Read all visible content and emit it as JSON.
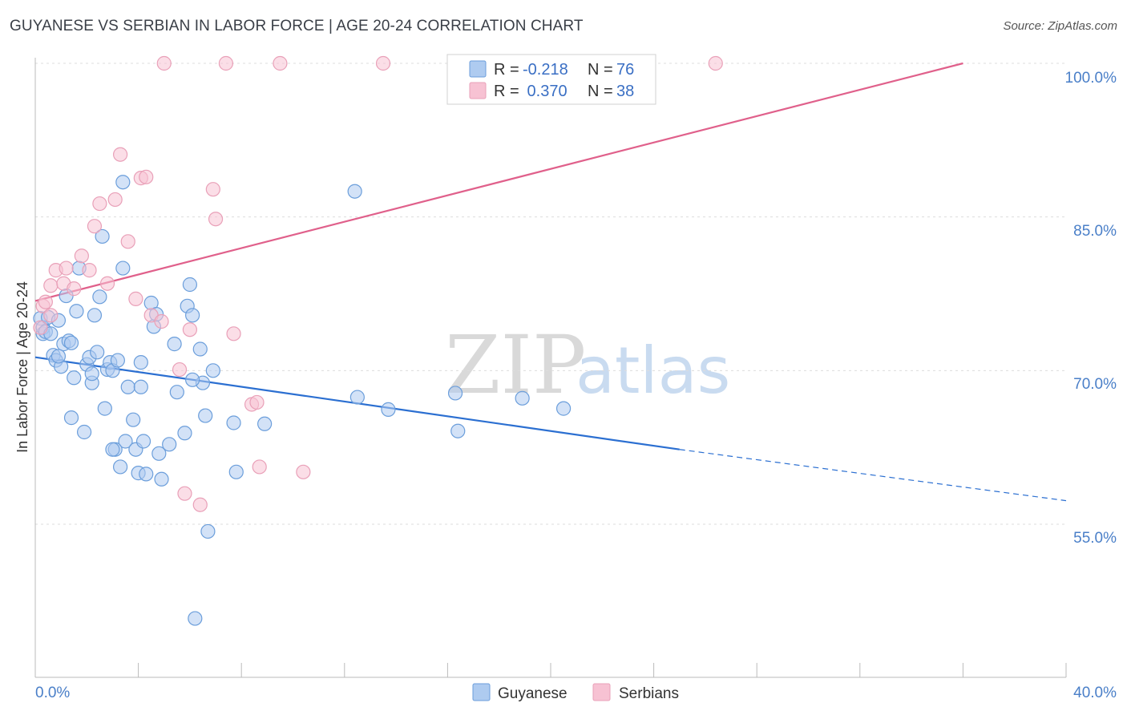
{
  "title": "GUYANESE VS SERBIAN IN LABOR FORCE | AGE 20-24 CORRELATION CHART",
  "source": "Source: ZipAtlas.com",
  "watermark": {
    "zip": "ZIP",
    "atlas": "atlas"
  },
  "colors": {
    "guyanese_fill": "#aecbf0",
    "guyanese_stroke": "#6b9edb",
    "guyanese_line": "#2b6fd1",
    "serbian_fill": "#f7c2d3",
    "serbian_stroke": "#e9a0b8",
    "serbian_line": "#e0608b",
    "tick_label": "#4a7fc8",
    "grid": "#dddddd"
  },
  "legend": {
    "rows": [
      {
        "r_label": "R = ",
        "r_value": "-0.218",
        "n_label": "N = ",
        "n_value": "76"
      },
      {
        "r_label": "R = ",
        "r_value": " 0.370",
        "n_label": "N = ",
        "n_value": "38"
      }
    ]
  },
  "chart_data": {
    "type": "scatter",
    "title": "GUYANESE VS SERBIAN IN LABOR FORCE | AGE 20-24 CORRELATION CHART",
    "xlabel": "",
    "ylabel": "In Labor Force | Age 20-24",
    "xlim": [
      0,
      40
    ],
    "ylim": [
      43,
      102
    ],
    "x_tick_labels": [
      "0.0%",
      "40.0%"
    ],
    "y_ticks": [
      55,
      70,
      85,
      100
    ],
    "y_tick_labels": [
      "55.0%",
      "70.0%",
      "85.0%",
      "100.0%"
    ],
    "grid": true,
    "legend_position": "top-center",
    "series": [
      {
        "name": "Guyanese",
        "points": [
          [
            0.2,
            75.1
          ],
          [
            0.3,
            73.6
          ],
          [
            0.3,
            74.2
          ],
          [
            0.4,
            73.8
          ],
          [
            0.5,
            75.2
          ],
          [
            0.6,
            73.6
          ],
          [
            0.7,
            71.5
          ],
          [
            0.8,
            71.0
          ],
          [
            0.9,
            74.9
          ],
          [
            1.0,
            70.4
          ],
          [
            1.1,
            72.6
          ],
          [
            1.2,
            77.3
          ],
          [
            1.3,
            72.9
          ],
          [
            1.4,
            65.4
          ],
          [
            1.4,
            72.7
          ],
          [
            1.5,
            69.3
          ],
          [
            1.6,
            75.8
          ],
          [
            1.7,
            80.0
          ],
          [
            1.9,
            64.0
          ],
          [
            2.0,
            70.6
          ],
          [
            2.1,
            71.3
          ],
          [
            2.2,
            68.8
          ],
          [
            2.3,
            75.4
          ],
          [
            2.4,
            71.8
          ],
          [
            2.5,
            77.2
          ],
          [
            2.6,
            83.1
          ],
          [
            2.7,
            66.3
          ],
          [
            2.8,
            70.1
          ],
          [
            2.9,
            70.8
          ],
          [
            3.0,
            70.0
          ],
          [
            3.1,
            62.3
          ],
          [
            3.2,
            71.0
          ],
          [
            3.3,
            60.6
          ],
          [
            3.4,
            80.0
          ],
          [
            3.5,
            63.1
          ],
          [
            3.6,
            68.4
          ],
          [
            3.0,
            62.3
          ],
          [
            3.4,
            88.4
          ],
          [
            3.8,
            65.2
          ],
          [
            3.9,
            62.3
          ],
          [
            4.0,
            60.0
          ],
          [
            4.1,
            68.4
          ],
          [
            4.2,
            63.1
          ],
          [
            4.3,
            59.9
          ],
          [
            4.5,
            76.6
          ],
          [
            4.6,
            74.3
          ],
          [
            4.7,
            75.5
          ],
          [
            4.8,
            61.9
          ],
          [
            4.9,
            59.4
          ],
          [
            5.2,
            62.8
          ],
          [
            5.4,
            72.6
          ],
          [
            5.5,
            67.9
          ],
          [
            5.8,
            63.9
          ],
          [
            5.9,
            76.3
          ],
          [
            6.0,
            78.4
          ],
          [
            6.1,
            75.4
          ],
          [
            6.4,
            72.1
          ],
          [
            6.5,
            68.8
          ],
          [
            6.6,
            65.6
          ],
          [
            6.7,
            54.3
          ],
          [
            6.9,
            70.0
          ],
          [
            7.7,
            64.9
          ],
          [
            7.8,
            60.1
          ],
          [
            8.9,
            64.8
          ],
          [
            6.2,
            45.8
          ],
          [
            12.4,
            87.5
          ],
          [
            12.5,
            67.4
          ],
          [
            13.7,
            66.2
          ],
          [
            16.3,
            67.8
          ],
          [
            16.4,
            64.1
          ],
          [
            18.9,
            67.3
          ],
          [
            20.5,
            66.3
          ],
          [
            0.9,
            71.4
          ],
          [
            2.2,
            69.7
          ],
          [
            4.1,
            70.8
          ],
          [
            6.1,
            69.1
          ]
        ],
        "trend": {
          "x": [
            0,
            25
          ],
          "y": [
            71.3,
            62.3
          ],
          "dashed_to": [
            40,
            57.3
          ]
        }
      },
      {
        "name": "Serbians",
        "points": [
          [
            0.2,
            74.2
          ],
          [
            0.3,
            76.3
          ],
          [
            0.4,
            76.7
          ],
          [
            0.6,
            75.4
          ],
          [
            0.6,
            78.3
          ],
          [
            0.8,
            79.8
          ],
          [
            1.1,
            78.5
          ],
          [
            1.2,
            80.0
          ],
          [
            1.5,
            78.0
          ],
          [
            1.8,
            81.2
          ],
          [
            2.1,
            79.8
          ],
          [
            2.3,
            84.1
          ],
          [
            2.5,
            86.3
          ],
          [
            2.8,
            78.5
          ],
          [
            3.1,
            86.7
          ],
          [
            3.3,
            91.1
          ],
          [
            3.6,
            82.6
          ],
          [
            3.9,
            77.0
          ],
          [
            4.1,
            88.8
          ],
          [
            4.3,
            88.9
          ],
          [
            4.5,
            75.4
          ],
          [
            4.9,
            74.8
          ],
          [
            5.6,
            70.1
          ],
          [
            5.8,
            58.0
          ],
          [
            6.0,
            74.0
          ],
          [
            6.4,
            56.9
          ],
          [
            6.9,
            87.7
          ],
          [
            7.0,
            84.8
          ],
          [
            7.7,
            73.6
          ],
          [
            8.4,
            66.7
          ],
          [
            8.6,
            66.9
          ],
          [
            8.7,
            60.6
          ],
          [
            10.4,
            60.1
          ],
          [
            5.0,
            100
          ],
          [
            7.4,
            100
          ],
          [
            9.5,
            100
          ],
          [
            13.5,
            100
          ],
          [
            26.4,
            100
          ]
        ],
        "trend": {
          "x": [
            0,
            36
          ],
          "y": [
            76.8,
            100
          ]
        }
      }
    ]
  }
}
